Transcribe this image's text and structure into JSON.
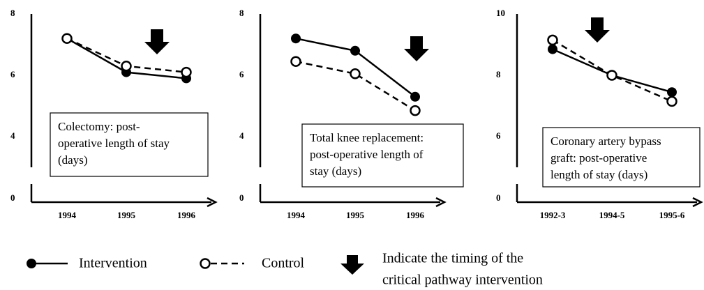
{
  "chart_data": [
    {
      "type": "line",
      "categories": [
        "1994",
        "1995",
        "1996"
      ],
      "series": [
        {
          "name": "Intervention",
          "color": "#000000",
          "values": [
            7.2,
            6.1,
            5.9
          ]
        },
        {
          "name": "Control",
          "color": "#000000",
          "values": [
            7.2,
            6.3,
            6.1
          ]
        }
      ],
      "ylim": [
        0,
        8
      ],
      "yticks": [
        0,
        4,
        6,
        8
      ],
      "axis_break": true,
      "annotation": [
        "Colectomy: post-",
        "operative length of stay",
        "(days)"
      ]
    },
    {
      "type": "line",
      "categories": [
        "1994",
        "1995",
        "1996"
      ],
      "series": [
        {
          "name": "Intervention",
          "color": "#000000",
          "values": [
            7.2,
            6.8,
            5.3
          ]
        },
        {
          "name": "Control",
          "color": "#000000",
          "values": [
            6.45,
            6.05,
            4.85
          ]
        }
      ],
      "ylim": [
        0,
        8
      ],
      "yticks": [
        0,
        4,
        6,
        8
      ],
      "axis_break": true,
      "annotation": [
        "Total knee replacement:",
        "post-operative length of",
        "stay (days)"
      ]
    },
    {
      "type": "line",
      "categories": [
        "1992-3",
        "1994-5",
        "1995-6"
      ],
      "series": [
        {
          "name": "Intervention",
          "color": "#000000",
          "values": [
            8.85,
            8.0,
            7.45
          ]
        },
        {
          "name": "Control",
          "color": "#000000",
          "values": [
            9.15,
            8.0,
            7.15
          ]
        }
      ],
      "ylim": [
        0,
        10
      ],
      "yticks": [
        0,
        6,
        8,
        10
      ],
      "axis_break": true,
      "annotation": [
        "Coronary artery bypass",
        "graft: post-operative",
        "length of stay (days)"
      ]
    }
  ],
  "arrow_note": [
    "Indicate the timing of the",
    "critical pathway intervention"
  ]
}
